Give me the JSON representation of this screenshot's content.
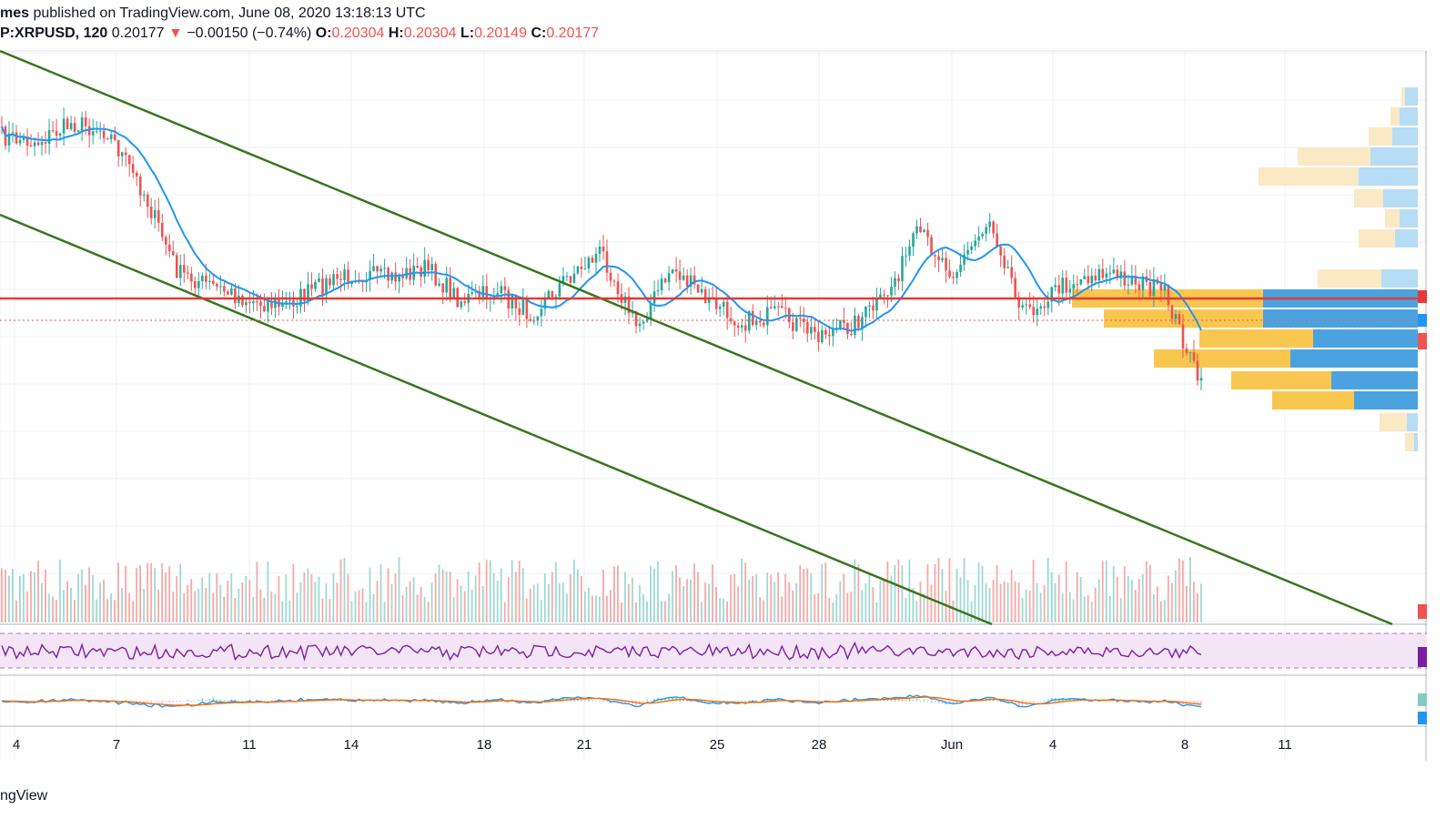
{
  "header": {
    "publisher_tail": "mes",
    "published_text": " published on TradingView.com, June 08, 2020 13:18:13 UTC",
    "symbol": "P:XRPUSD, 120",
    "last": "0.20177",
    "arrow": "▼",
    "change": "−0.00150 (−0.74%)",
    "o_label": "O:",
    "o_value": "0.20304",
    "h_label": "H:",
    "h_value": "0.20304",
    "l_label": "L:",
    "l_value": "0.20149",
    "c_label": "C:",
    "c_value": "0.20177"
  },
  "footer": {
    "brand": "ngView"
  },
  "colors": {
    "up": "#26a69a",
    "down": "#ef5350",
    "ma": "#2196f3",
    "trend": "#38761d",
    "level": "#e53935",
    "rsi_line": "#7b1fa2",
    "rsi_band": "#f3e5f5",
    "macd": "#2196f3",
    "signal": "#ff6d00",
    "vp_up": "#f9c74f",
    "vp_down": "#4aa3df"
  },
  "chart_data": {
    "type": "candlestick",
    "x_tick_labels": [
      "4",
      "7",
      "11",
      "14",
      "18",
      "21",
      "25",
      "28",
      "Jun",
      "4",
      "8",
      "11"
    ],
    "price_series": {
      "name": "XRPUSD 120",
      "approx_close_path": [
        0.211,
        0.2108,
        0.2115,
        0.2112,
        0.209,
        0.206,
        0.2055,
        0.205,
        0.2048,
        0.2055,
        0.206,
        0.2058,
        0.2062,
        0.205,
        0.2053,
        0.2045,
        0.2058,
        0.2068,
        0.204,
        0.2062,
        0.205,
        0.2042,
        0.2045,
        0.2038,
        0.204,
        0.205,
        0.2075,
        0.206,
        0.208,
        0.2045,
        0.2055,
        0.206,
        0.2058,
        0.2052,
        0.2018
      ]
    },
    "moving_average": "blue line tracking price",
    "horizontal_level": "red solid line near 0.2060 with dashed current-price line near 0.2018",
    "trend_lines": [
      "upper descending channel line",
      "lower descending channel line"
    ],
    "indicators": [
      "Volume",
      "RSI",
      "MACD"
    ],
    "volume_profile": "right-side horizontal histogram"
  }
}
